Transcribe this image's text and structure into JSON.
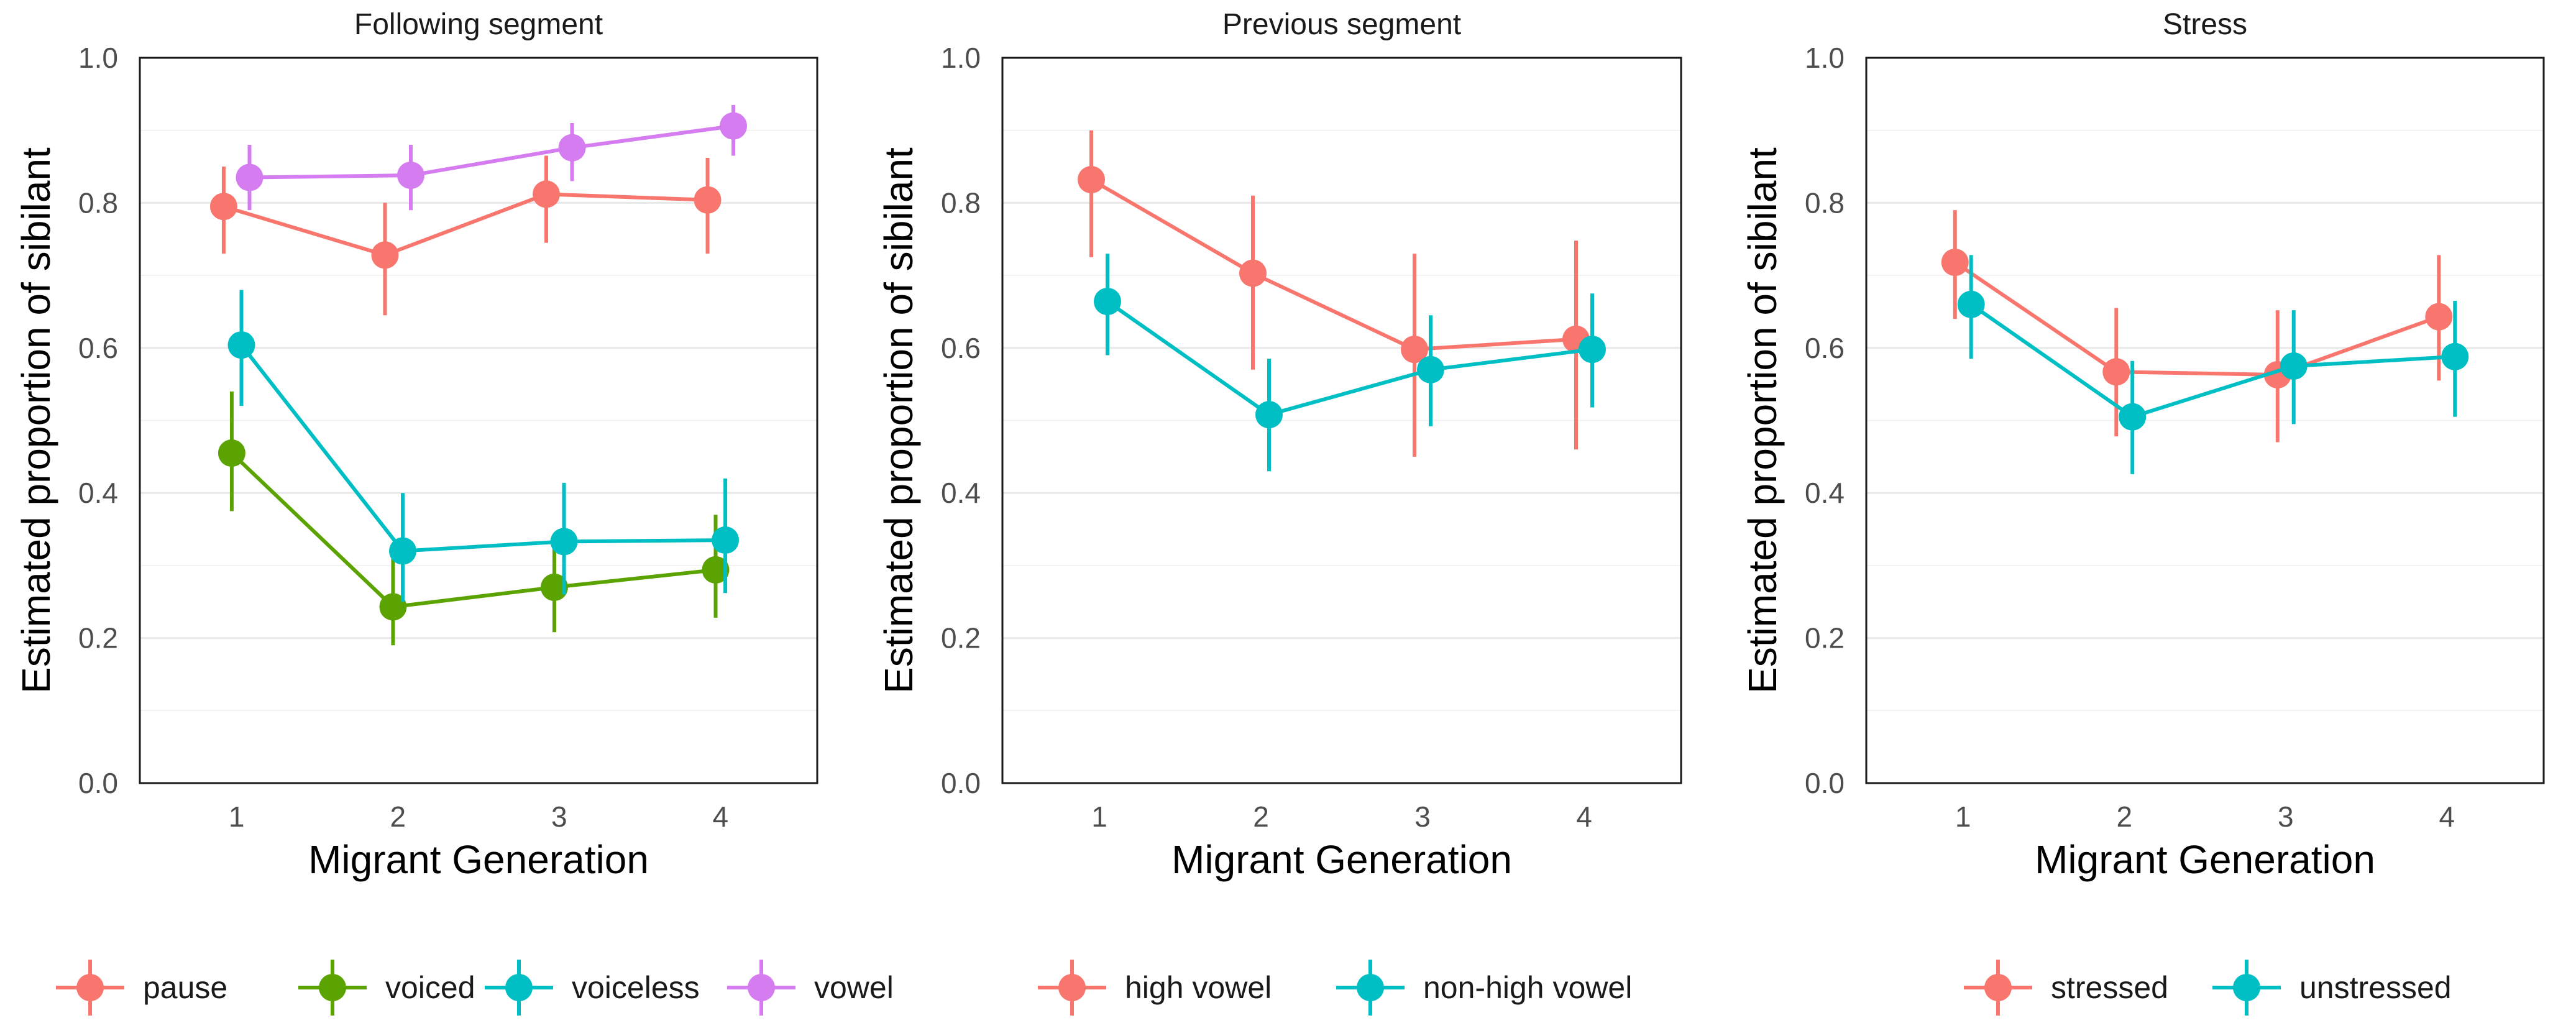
{
  "chart_data": [
    {
      "type": "line",
      "title": "Following segment",
      "xlabel": "Migrant Generation",
      "ylabel": "Estimated proportion of sibilant",
      "ylim": [
        0,
        1
      ],
      "yticks": [
        "0.0",
        "0.2",
        "0.4",
        "0.6",
        "0.8",
        "1.0"
      ],
      "xlim": [
        0.4,
        4.6
      ],
      "categories": [
        "1",
        "2",
        "3",
        "4"
      ],
      "series": [
        {
          "name": "pause",
          "color": "#F8766D",
          "dodge": -0.08,
          "values": [
            0.795,
            0.728,
            0.812,
            0.804
          ],
          "lower": [
            0.73,
            0.645,
            0.745,
            0.73
          ],
          "upper": [
            0.85,
            0.8,
            0.865,
            0.862
          ]
        },
        {
          "name": "voiced",
          "color": "#5BA300",
          "dodge": -0.03,
          "values": [
            0.455,
            0.243,
            0.27,
            0.294
          ],
          "lower": [
            0.375,
            0.19,
            0.208,
            0.228
          ],
          "upper": [
            0.54,
            0.31,
            0.34,
            0.37
          ]
        },
        {
          "name": "voiceless",
          "color": "#00BFC4",
          "dodge": 0.03,
          "values": [
            0.604,
            0.32,
            0.333,
            0.335
          ],
          "lower": [
            0.52,
            0.25,
            0.26,
            0.262
          ],
          "upper": [
            0.68,
            0.4,
            0.414,
            0.42
          ]
        },
        {
          "name": "vowel",
          "color": "#D47CF0",
          "dodge": 0.08,
          "values": [
            0.835,
            0.838,
            0.876,
            0.906
          ],
          "lower": [
            0.79,
            0.79,
            0.83,
            0.865
          ],
          "upper": [
            0.88,
            0.88,
            0.91,
            0.935
          ]
        }
      ]
    },
    {
      "type": "line",
      "title": "Previous segment",
      "xlabel": "Migrant Generation",
      "ylabel": "Estimated proportion of sibilant",
      "ylim": [
        0,
        1
      ],
      "yticks": [
        "0.0",
        "0.2",
        "0.4",
        "0.6",
        "0.8",
        "1.0"
      ],
      "xlim": [
        0.4,
        4.6
      ],
      "categories": [
        "1",
        "2",
        "3",
        "4"
      ],
      "series": [
        {
          "name": "high vowel",
          "color": "#F8766D",
          "dodge": -0.05,
          "values": [
            0.832,
            0.703,
            0.598,
            0.612
          ],
          "lower": [
            0.725,
            0.57,
            0.45,
            0.46
          ],
          "upper": [
            0.9,
            0.81,
            0.73,
            0.748
          ]
        },
        {
          "name": "non-high vowel",
          "color": "#00BFC4",
          "dodge": 0.05,
          "values": [
            0.664,
            0.508,
            0.57,
            0.598
          ],
          "lower": [
            0.59,
            0.43,
            0.492,
            0.518
          ],
          "upper": [
            0.73,
            0.585,
            0.645,
            0.675
          ]
        }
      ]
    },
    {
      "type": "line",
      "title": "Stress",
      "xlabel": "Migrant Generation",
      "ylabel": "Estimated proportion of sibilant",
      "ylim": [
        0,
        1
      ],
      "yticks": [
        "0.0",
        "0.2",
        "0.4",
        "0.6",
        "0.8",
        "1.0"
      ],
      "xlim": [
        0.4,
        4.6
      ],
      "categories": [
        "1",
        "2",
        "3",
        "4"
      ],
      "series": [
        {
          "name": "stressed",
          "color": "#F8766D",
          "dodge": -0.05,
          "values": [
            0.718,
            0.567,
            0.563,
            0.643
          ],
          "lower": [
            0.64,
            0.478,
            0.47,
            0.555
          ],
          "upper": [
            0.79,
            0.655,
            0.652,
            0.728
          ]
        },
        {
          "name": "unstressed",
          "color": "#00BFC4",
          "dodge": 0.05,
          "values": [
            0.66,
            0.505,
            0.575,
            0.588
          ],
          "lower": [
            0.585,
            0.426,
            0.495,
            0.505
          ],
          "upper": [
            0.728,
            0.582,
            0.652,
            0.665
          ]
        }
      ]
    }
  ]
}
